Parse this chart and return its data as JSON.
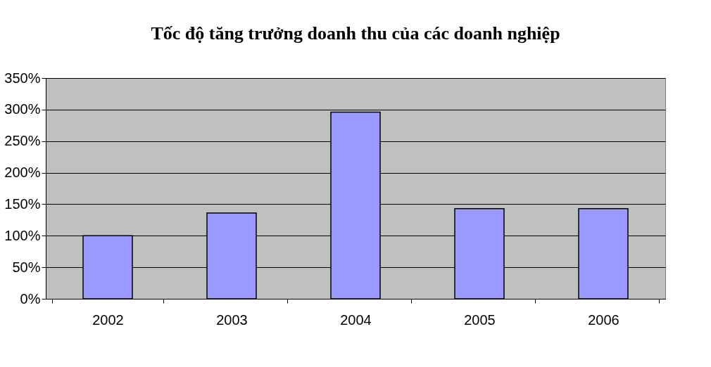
{
  "chart_data": {
    "type": "bar",
    "title": "Tốc độ tăng trưởng doanh thu của các doanh nghiệp",
    "categories": [
      "2002",
      "2003",
      "2004",
      "2005",
      "2006"
    ],
    "values": [
      100,
      136,
      296,
      143,
      143
    ],
    "color": "#9999ff",
    "ylim": [
      0,
      350
    ],
    "yticks": [
      {
        "value": 0,
        "label": "0%"
      },
      {
        "value": 50,
        "label": "50%"
      },
      {
        "value": 100,
        "label": "100%"
      },
      {
        "value": 150,
        "label": "150%"
      },
      {
        "value": 200,
        "label": "200%"
      },
      {
        "value": 250,
        "label": "250%"
      },
      {
        "value": 300,
        "label": "300%"
      },
      {
        "value": 350,
        "label": "350%"
      }
    ],
    "grid": "y"
  }
}
